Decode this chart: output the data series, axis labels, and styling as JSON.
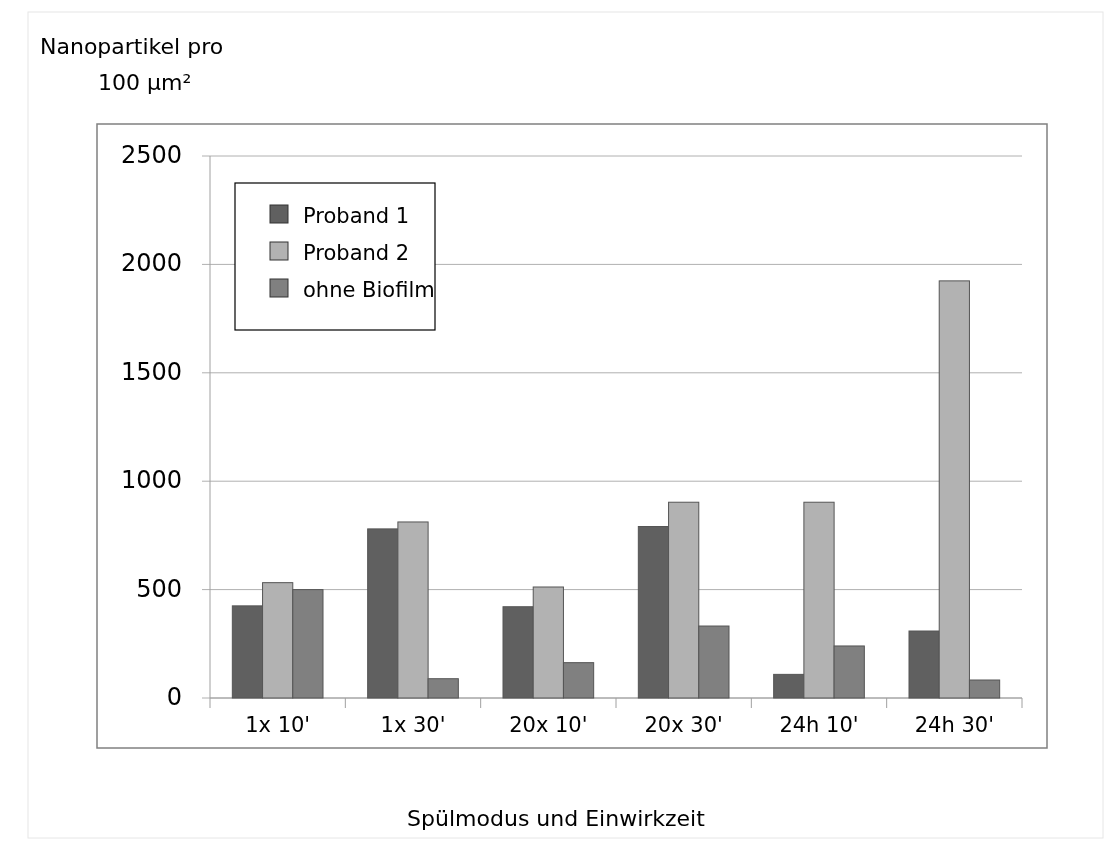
{
  "chart_data": {
    "type": "bar",
    "ylabel": "Nanopartikel pro\n100 µm²",
    "xlabel": "Spülmodus und Einwirkzeit",
    "categories": [
      "1x 10'",
      "1x 30'",
      "20x 10'",
      "20x 30'",
      "24h 10'",
      "24h 30'"
    ],
    "series": [
      {
        "name": "Proband 1",
        "color": "#606060",
        "values": [
          425,
          780,
          421,
          791,
          109,
          309
        ]
      },
      {
        "name": "Proband 2",
        "color": "#b2b2b2",
        "values": [
          532,
          812,
          512,
          903,
          903,
          1924
        ]
      },
      {
        "name": "ohne Biofilm",
        "color": "#808080",
        "values": [
          500,
          89,
          163,
          332,
          240,
          83
        ]
      }
    ],
    "ylim": [
      0,
      2500
    ],
    "yticks": [
      0,
      500,
      1000,
      1500,
      2000,
      2500
    ],
    "grid": "y",
    "legend": "top left"
  }
}
